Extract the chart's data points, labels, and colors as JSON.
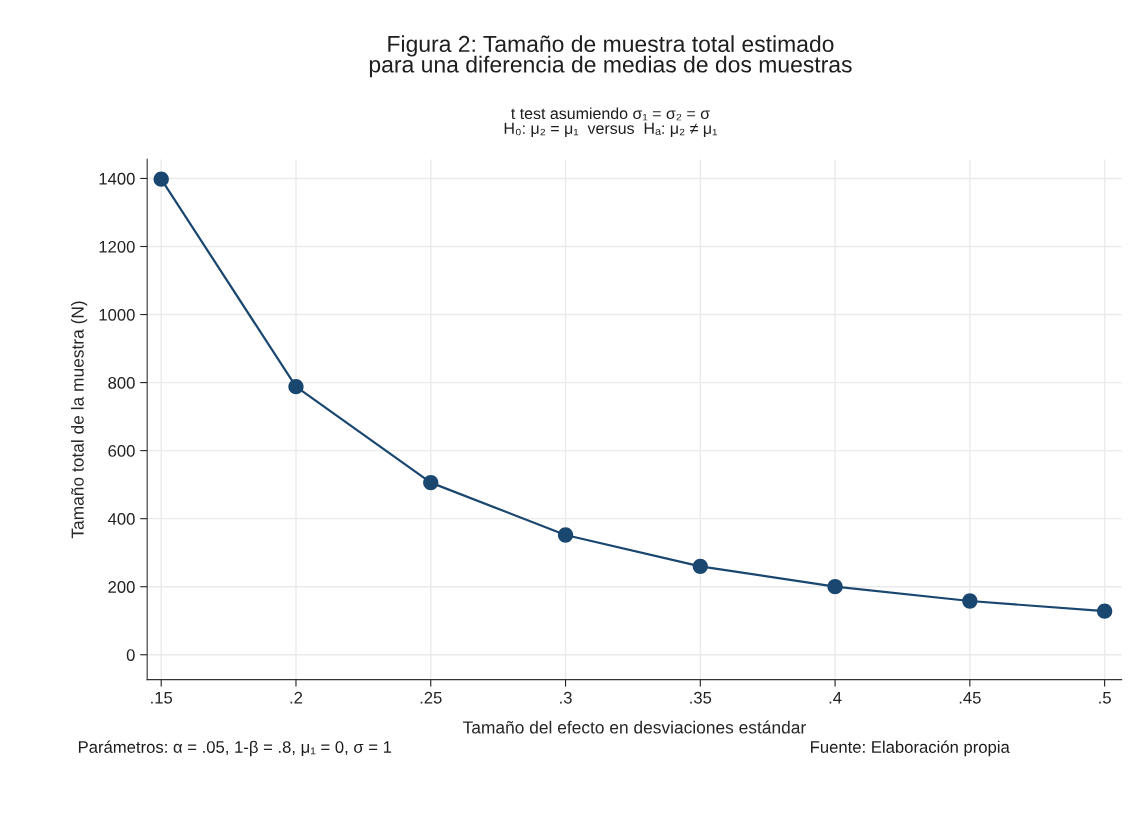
{
  "chart_data": {
    "type": "line",
    "title": "Figura 2: Tamaño de muestra total estimado\npara una diferencia de medias de dos muestras",
    "subtitle": "t test asumiendo σ₁ = σ₂ = σ\nH₀: μ₂ = μ₁  versus  Hₐ: μ₂ ≠ μ₁",
    "xlabel": "Tamaño del efecto en desviaciones estándar",
    "ylabel": "Tamaño total de la muestra (N)",
    "x": [
      0.15,
      0.2,
      0.25,
      0.3,
      0.35,
      0.4,
      0.45,
      0.5
    ],
    "series": [
      {
        "color": "#1a476f",
        "values": [
          1398,
          788,
          506,
          352,
          260,
          200,
          158,
          128
        ]
      }
    ],
    "xlim": [
      0.1448,
      0.5063
    ],
    "ylim": [
      -73,
      1456
    ],
    "xticks": [
      {
        "value": 0.15,
        "label": ".15"
      },
      {
        "value": 0.2,
        "label": ".2"
      },
      {
        "value": 0.25,
        "label": ".25"
      },
      {
        "value": 0.3,
        "label": ".3"
      },
      {
        "value": 0.35,
        "label": ".35"
      },
      {
        "value": 0.4,
        "label": ".4"
      },
      {
        "value": 0.45,
        "label": ".45"
      },
      {
        "value": 0.5,
        "label": ".5"
      }
    ],
    "yticks": [
      0,
      200,
      400,
      600,
      800,
      1000,
      1200,
      1400
    ],
    "grid": true,
    "marker": "circle",
    "line_style": "solid",
    "legend": false,
    "annotations": [
      "Parámetros: α = .05, 1-β = .8, μ₁ = 0, σ = 1",
      "Fuente: Elaboración propia"
    ]
  }
}
